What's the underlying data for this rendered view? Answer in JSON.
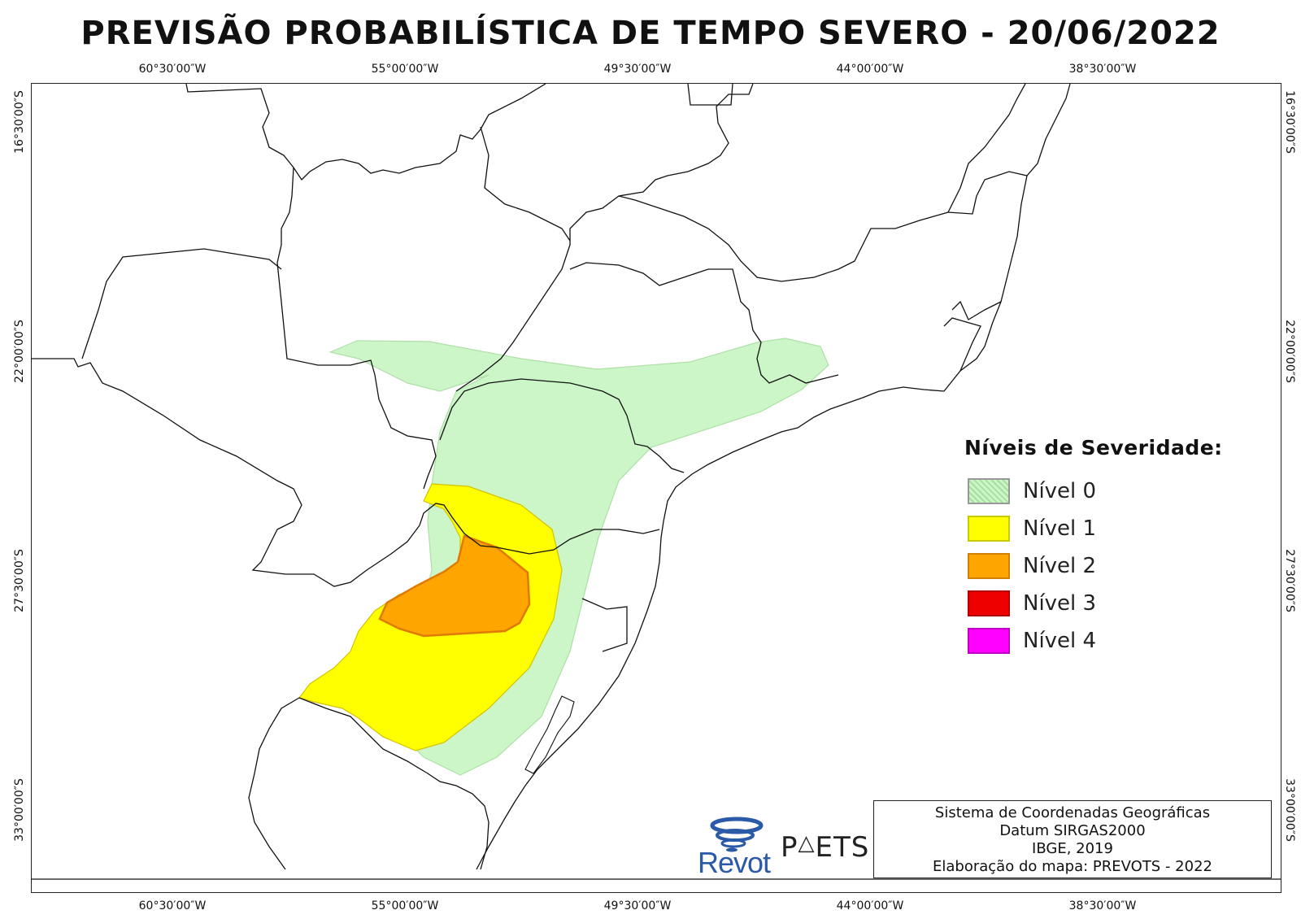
{
  "title": "PREVISÃO PROBABILÍSTICA DE TEMPO SEVERO - 20/06/2022",
  "longitude_labels": [
    "60°30′00″W",
    "55°00′00″W",
    "49°30′00″W",
    "44°00′00″W",
    "38°30′00″W"
  ],
  "latitude_labels": [
    "16°30′00″S",
    "22°00′00″S",
    "27°30′00″S",
    "33°00′00″S"
  ],
  "legend": {
    "title": "Níveis de Severidade:",
    "items": [
      {
        "label": "Nível 0",
        "color": "#ccf5c8"
      },
      {
        "label": "Nível 1",
        "color": "#ffff00"
      },
      {
        "label": "Nível 2",
        "color": "#ffa500"
      },
      {
        "label": "Nível 3",
        "color": "#ee0000"
      },
      {
        "label": "Nível 4",
        "color": "#ff00ff"
      }
    ]
  },
  "info": {
    "line1": "Sistema de Coordenadas Geográficas",
    "line2": "Datum SIRGAS2000",
    "line3": "IBGE, 2019",
    "line4": "Elaboração do mapa: PREVOTS - 2022"
  },
  "logos": {
    "revot_text": "Revot",
    "revot_icon": "tornado-swirl-icon",
    "prevots_text": "PREVOTS"
  },
  "colors": {
    "level0": "#ccf5c8",
    "level1": "#ffff00",
    "level2": "#ffa500",
    "border": "#111111"
  }
}
